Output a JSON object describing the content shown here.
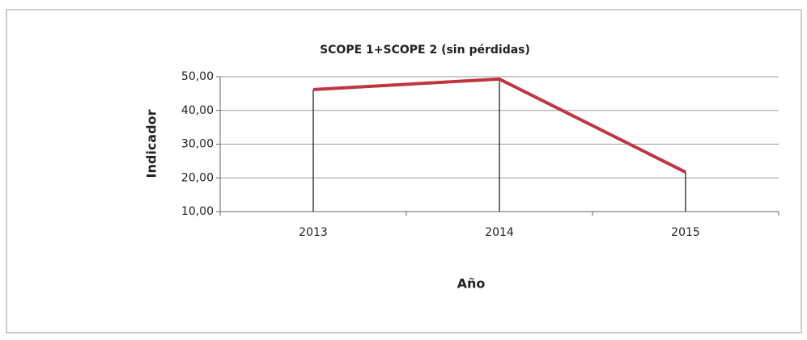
{
  "chart_data": {
    "type": "line",
    "title": "SCOPE 1+SCOPE 2 (sin pérdidas)",
    "x_label": "Año",
    "y_label": "Indicador",
    "categories": [
      "2013",
      "2014",
      "2015"
    ],
    "series": [
      {
        "name": "Indicador",
        "color": "#c0353f",
        "values": [
          46.2,
          49.3,
          21.7
        ]
      }
    ],
    "ylim": [
      10,
      50
    ],
    "yticks": [
      {
        "value": 10,
        "label": "10,00"
      },
      {
        "value": 20,
        "label": "20,00"
      },
      {
        "value": 30,
        "label": "30,00"
      },
      {
        "value": 40,
        "label": "40,00"
      },
      {
        "value": 50,
        "label": "50,00"
      }
    ],
    "grid": true
  }
}
